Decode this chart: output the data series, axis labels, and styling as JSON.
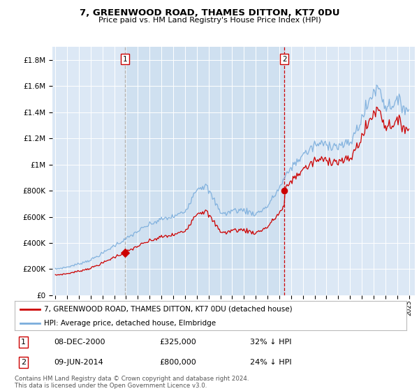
{
  "title": "7, GREENWOOD ROAD, THAMES DITTON, KT7 0DU",
  "subtitle": "Price paid vs. HM Land Registry's House Price Index (HPI)",
  "background_color": "#ffffff",
  "plot_bg_color": "#dce8f5",
  "highlight_bg_color": "#cfe0f0",
  "grid_color": "#ffffff",
  "hpi_color": "#7aaddc",
  "price_color": "#cc0000",
  "vline1_color": "#aaaaaa",
  "vline2_color": "#cc0000",
  "legend_label_price": "7, GREENWOOD ROAD, THAMES DITTON, KT7 0DU (detached house)",
  "legend_label_hpi": "HPI: Average price, detached house, Elmbridge",
  "annotation1_label": "1",
  "annotation1_date": "08-DEC-2000",
  "annotation1_price": "£325,000",
  "annotation1_pct": "32% ↓ HPI",
  "annotation2_label": "2",
  "annotation2_date": "09-JUN-2014",
  "annotation2_price": "£800,000",
  "annotation2_pct": "24% ↓ HPI",
  "footnote": "Contains HM Land Registry data © Crown copyright and database right 2024.\nThis data is licensed under the Open Government Licence v3.0.",
  "ylim": [
    0,
    1900000
  ],
  "yticks": [
    0,
    200000,
    400000,
    600000,
    800000,
    1000000,
    1200000,
    1400000,
    1600000,
    1800000
  ],
  "ytick_labels": [
    "£0",
    "£200K",
    "£400K",
    "£600K",
    "£800K",
    "£1M",
    "£1.2M",
    "£1.4M",
    "£1.6M",
    "£1.8M"
  ],
  "sale1_x": 2000.917,
  "sale1_y": 325000,
  "sale2_x": 2014.44,
  "sale2_y": 800000,
  "xmin": 1994.75,
  "xmax": 2025.5
}
